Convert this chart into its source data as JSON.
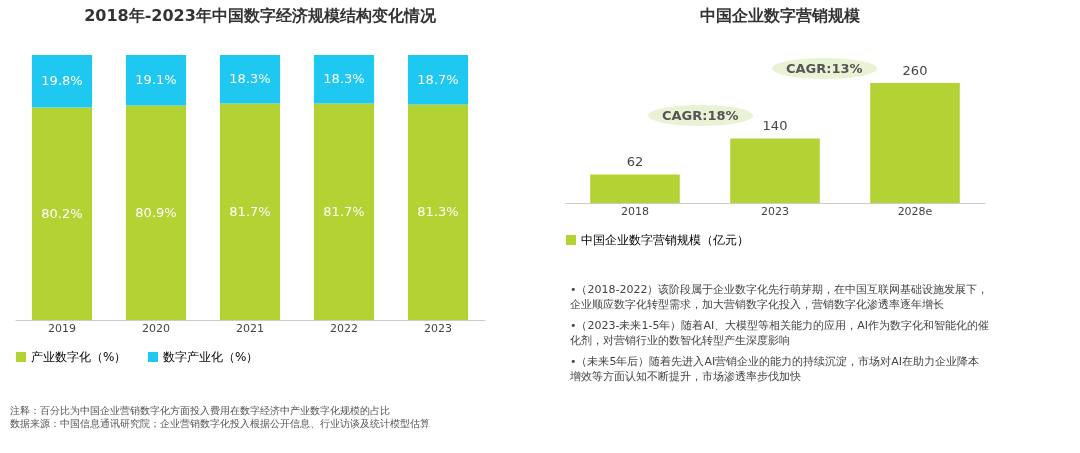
{
  "chart_data": [
    {
      "type": "bar",
      "title": "2018年-2023年中国数字经济规模结构变化情况",
      "categories": [
        "2019",
        "2020",
        "2021",
        "2022",
        "2023"
      ],
      "stacked": true,
      "legend": "bottom",
      "tick_labels": "x",
      "ylim": [
        0,
        100
      ],
      "series": [
        {
          "name": "产业数字化（%）",
          "color": "#b3d334",
          "values": [
            80.2,
            80.9,
            81.7,
            81.7,
            81.3
          ],
          "value_labels": [
            "80.2%",
            "80.9%",
            "81.7%",
            "81.7%",
            "81.3%"
          ]
        },
        {
          "name": "数字产业化（%）",
          "color": "#1fc8f0",
          "values": [
            19.8,
            19.1,
            18.3,
            18.3,
            18.7
          ],
          "value_labels": [
            "19.8%",
            "19.1%",
            "18.3%",
            "18.3%",
            "18.7%"
          ]
        }
      ],
      "annotations": [
        "注释：百分比为中国企业营销数字化方面投入费用在数字经济中产业数字化规模的占比",
        "数据来源：中国信息通讯研究院；企业营销数字化投入根据公开信息、行业访谈及统计模型估算"
      ]
    },
    {
      "type": "bar",
      "title": "中国企业数字营销规模",
      "categories": [
        "2018",
        "2023",
        "2028e"
      ],
      "data_labels": true,
      "legend": "bottom",
      "tick_labels": "x",
      "series": [
        {
          "name": "中国企业数字营销规模（亿元）",
          "color": "#b3d334",
          "values": [
            62,
            140,
            260
          ]
        }
      ],
      "annotations": [
        "CAGR:18%",
        "CAGR:13%",
        "•（2018-2022）该阶段属于企业数字化先行萌芽期，在中国互联网基础设施发展下，企业顺应数字化转型需求，加大营销数字化投入，营销数字化渗透率逐年增长",
        "•（2023-未来1-5年）随着AI、大模型等相关能力的应用，AI作为数字化和智能化的催化剂，对营销行业的数智化转型产生深度影响",
        "•（未来5年后）随着先进入AI营销企业的能力的持续沉淀，市场对AI在助力企业降本增效等方面认知不断提升，市场渗透率步伐加快"
      ]
    }
  ]
}
